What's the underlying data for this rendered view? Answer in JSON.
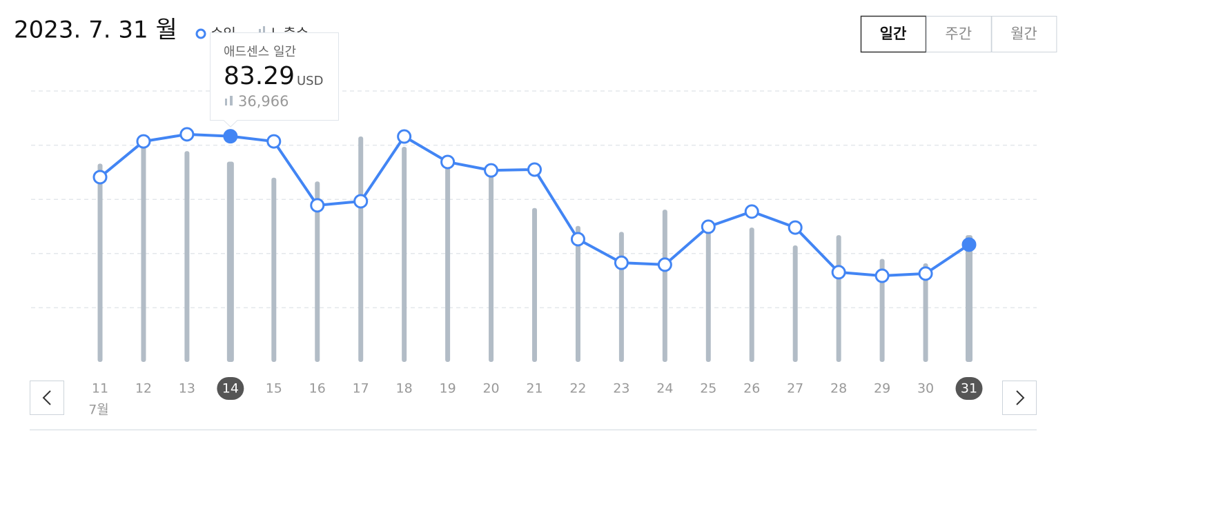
{
  "chart_data": {
    "type": "combo",
    "title": "2023. 7. 31 월",
    "period_buttons": [
      "일간",
      "주간",
      "월간"
    ],
    "active_period": "일간",
    "categories": [
      "11",
      "12",
      "13",
      "14",
      "15",
      "16",
      "17",
      "18",
      "19",
      "20",
      "21",
      "22",
      "23",
      "24",
      "25",
      "26",
      "27",
      "28",
      "29",
      "30",
      "31"
    ],
    "x_sublabel": "7월",
    "highlighted": [
      "14",
      "31"
    ],
    "series": [
      {
        "name": "수익",
        "type": "line",
        "color": "#4285f4",
        "values": [
          68.2,
          81.4,
          84.0,
          83.29,
          81.4,
          57.8,
          59.3,
          83.2,
          73.8,
          70.7,
          71.0,
          45.3,
          36.6,
          35.9,
          49.9,
          55.5,
          49.6,
          33.1,
          31.8,
          32.6,
          43.3
        ]
      },
      {
        "name": "노출수",
        "type": "bar",
        "axis": "y2",
        "color": "#b2bcc6",
        "values": [
          36600,
          40100,
          38900,
          36966,
          34000,
          33300,
          41600,
          39700,
          36300,
          35000,
          28400,
          25100,
          24000,
          28100,
          25300,
          24800,
          21500,
          23400,
          19000,
          18200,
          23400
        ]
      }
    ],
    "ylim": [
      0,
      100
    ],
    "yticks": [
      20,
      40,
      60,
      80,
      100
    ],
    "y2lim": [
      0,
      50000
    ],
    "tick_labels": false,
    "grid": true,
    "tooltip": {
      "title": "애드센스 일간",
      "revenue": 83.29,
      "unit": "USD",
      "impressions": {
        "value": 36966,
        "label": "36,966"
      }
    }
  }
}
